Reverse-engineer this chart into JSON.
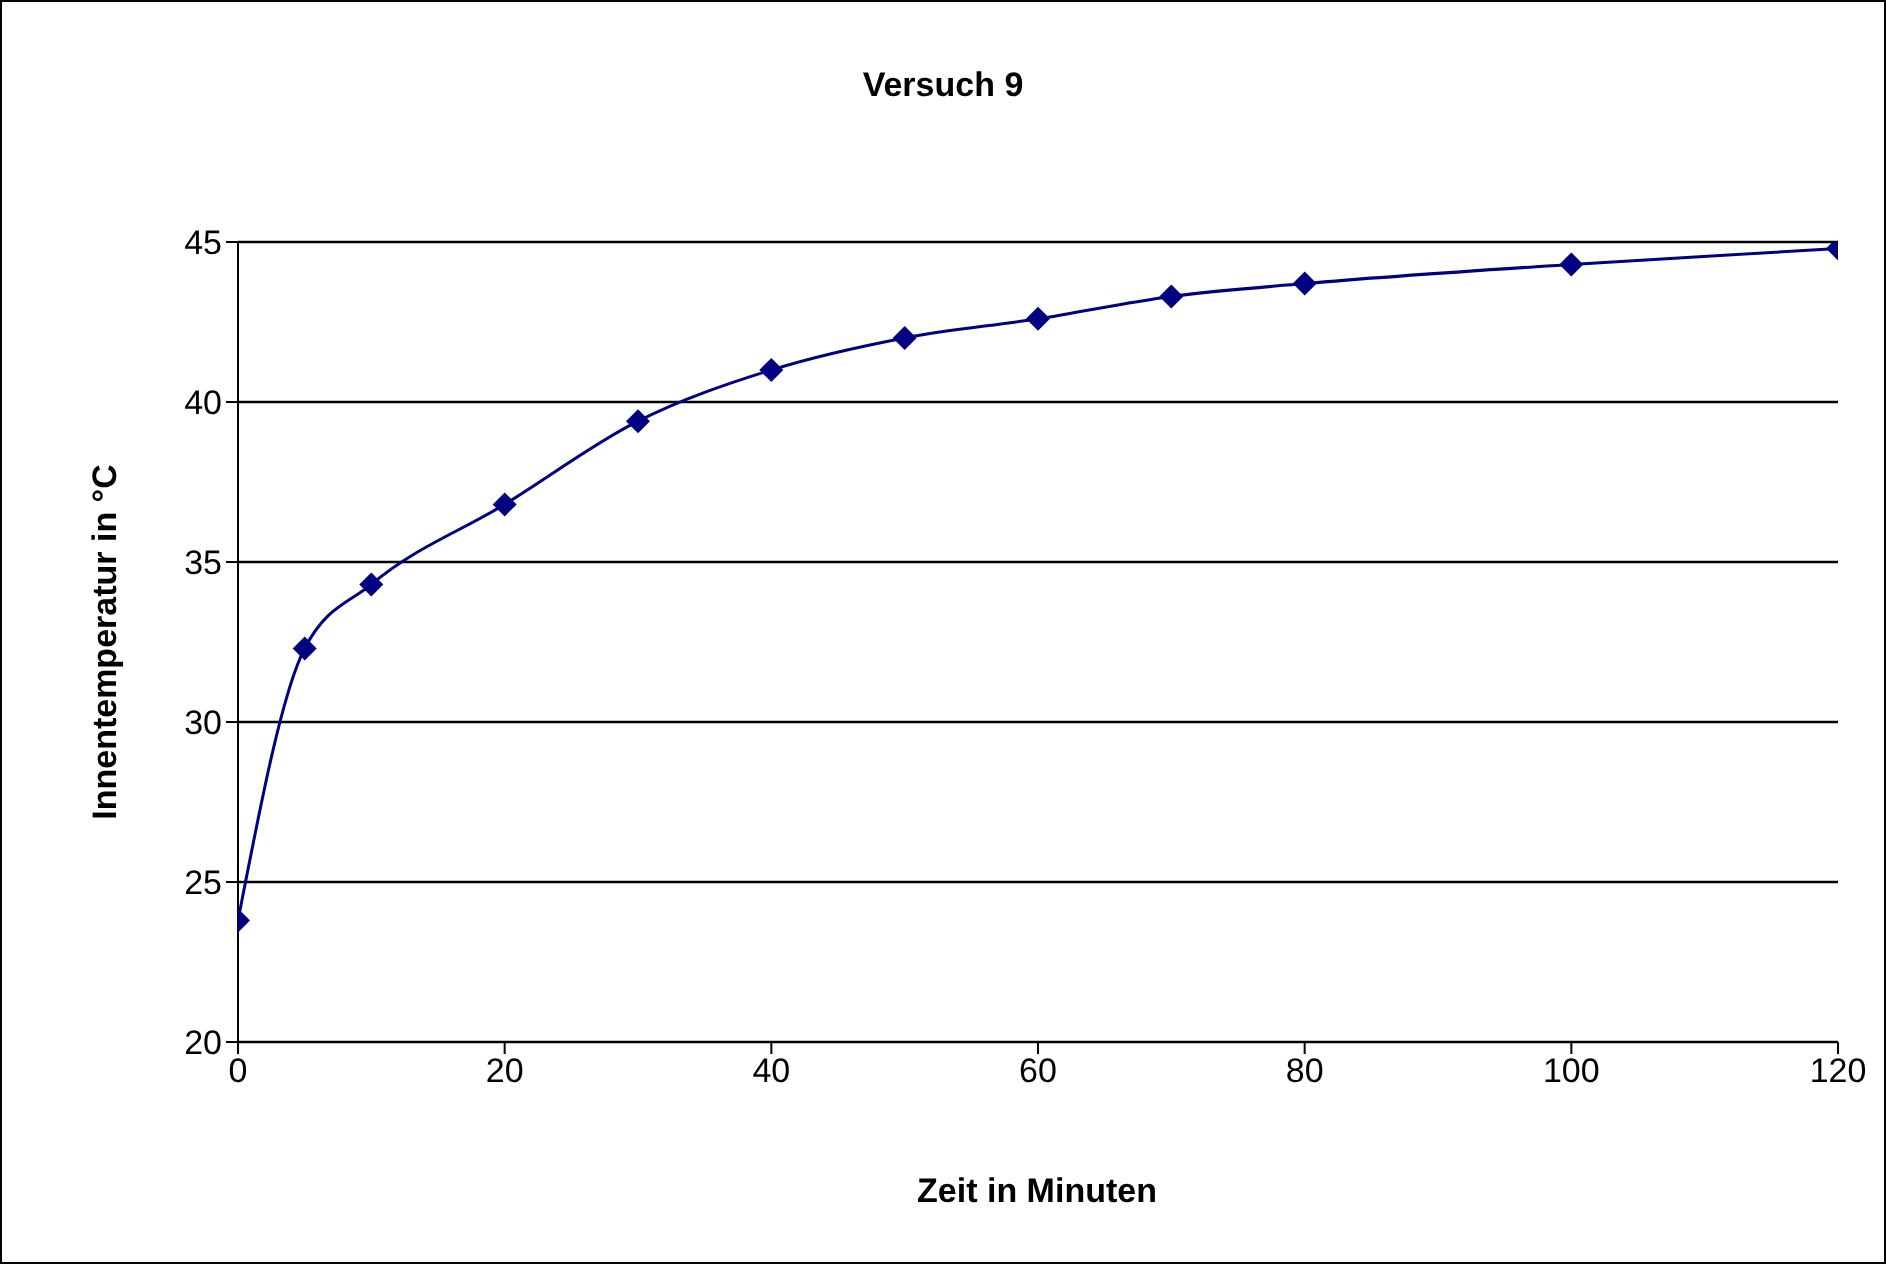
{
  "chart_data": {
    "type": "line",
    "title": "Versuch 9",
    "xlabel": "Zeit in Minuten",
    "ylabel": "Innentemperatur in °C",
    "x": [
      0,
      5,
      10,
      20,
      30,
      40,
      50,
      60,
      70,
      80,
      100,
      120
    ],
    "series": [
      {
        "color": "#000080",
        "values": [
          23.8,
          32.3,
          34.3,
          36.8,
          39.4,
          41,
          42,
          42.6,
          43.3,
          43.7,
          44.3,
          44.8
        ]
      }
    ],
    "xlim": [
      0,
      120
    ],
    "xticks": [
      0,
      20,
      40,
      60,
      80,
      100,
      120
    ],
    "ylim": [
      20,
      45
    ],
    "yticks": [
      20,
      25,
      30,
      35,
      40,
      45
    ],
    "grid": "y",
    "marker": "diamond",
    "line_style": "solid"
  }
}
